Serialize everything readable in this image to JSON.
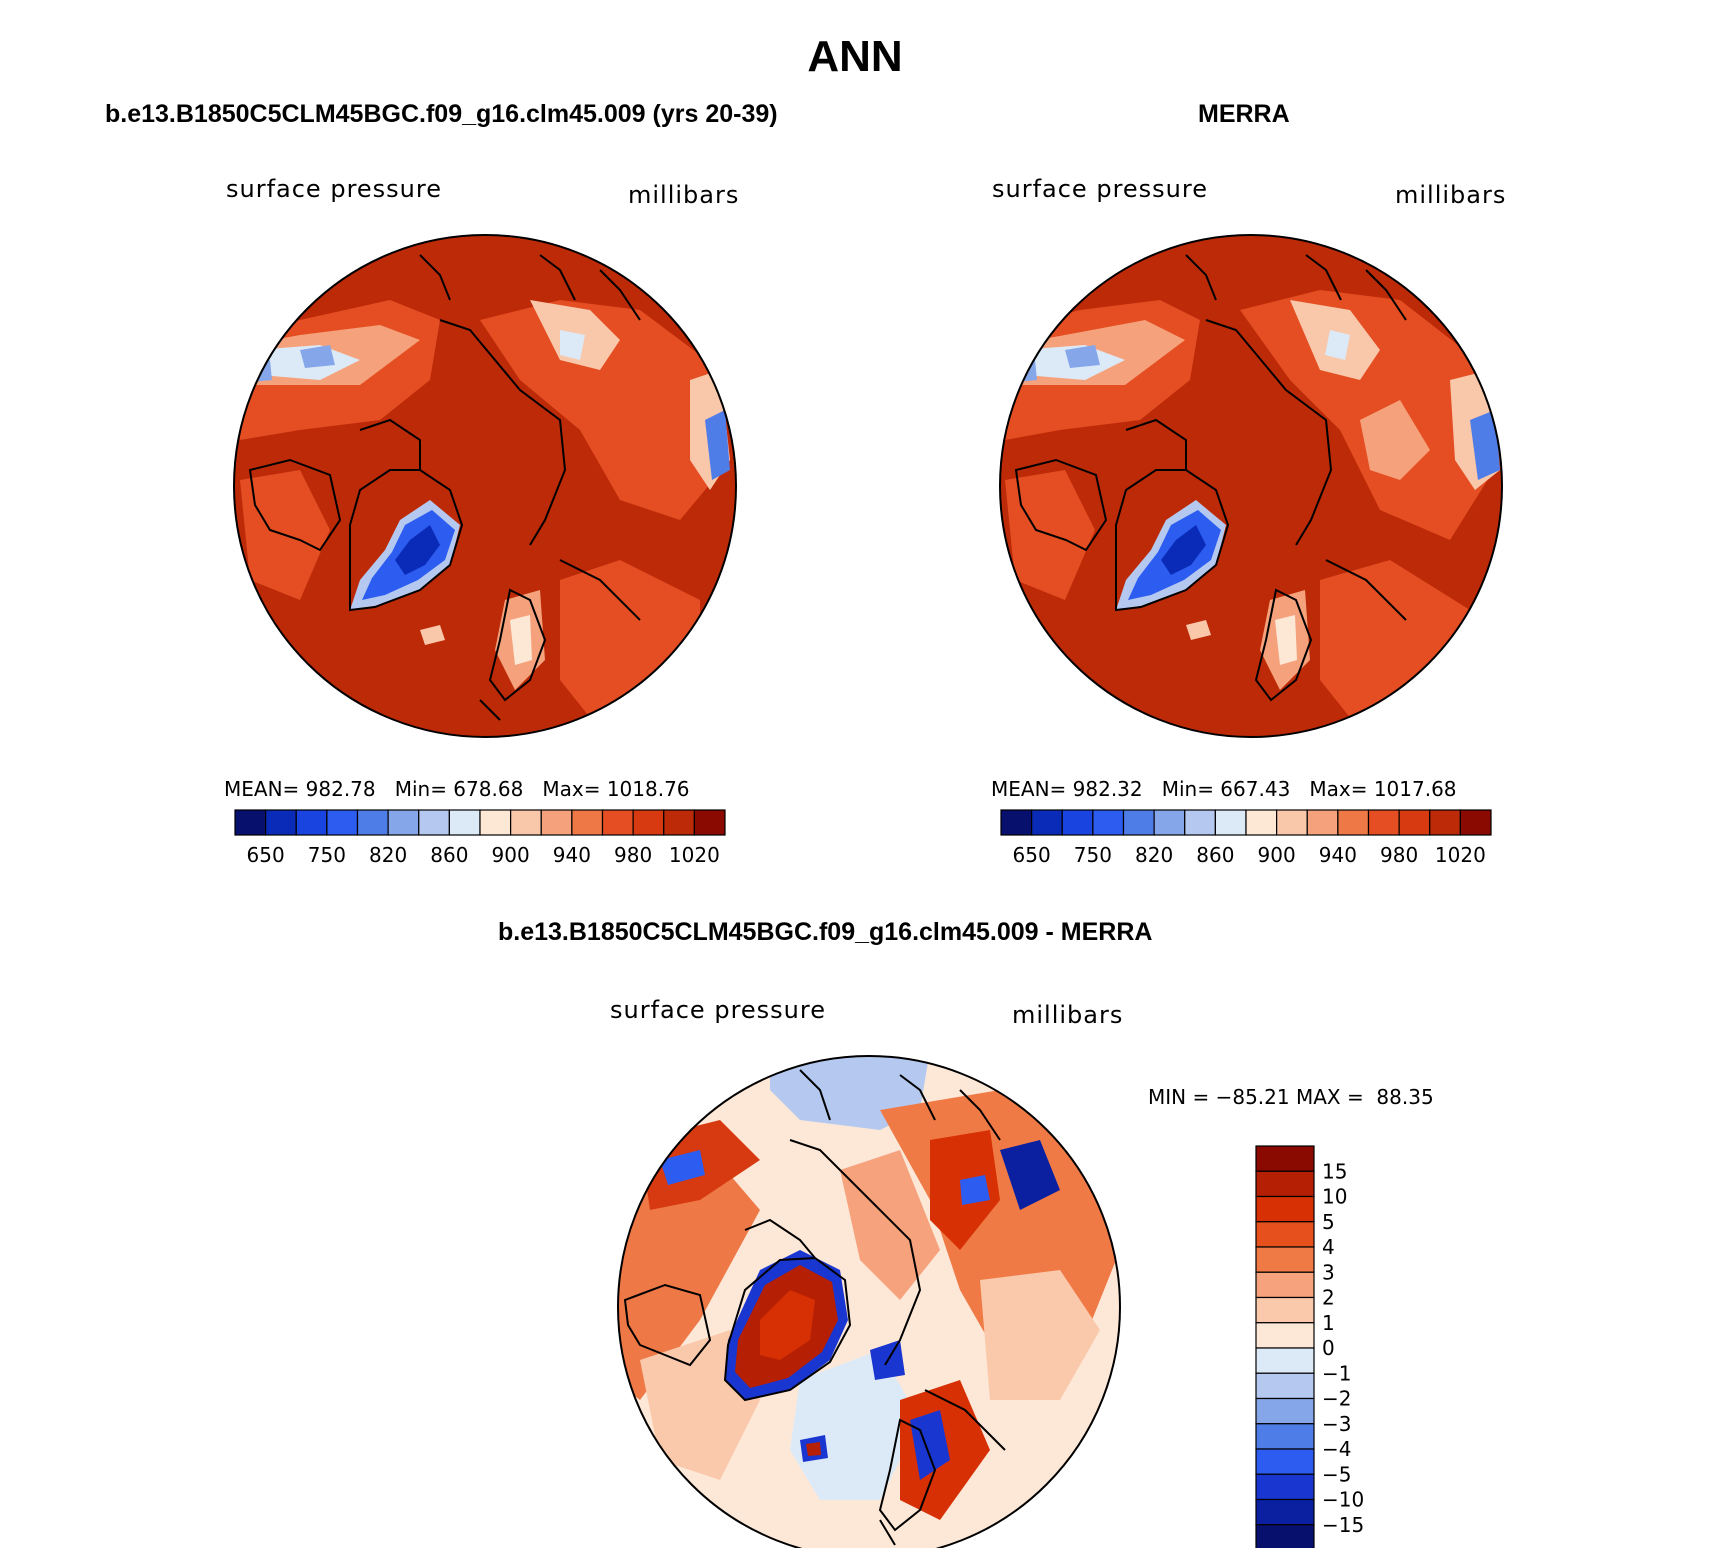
{
  "main_title": "ANN",
  "panels": [
    {
      "title": "b.e13.B1850C5CLM45BGC.f09_g16.clm45.009 (yrs 20-39)",
      "variable": "surface pressure",
      "units": "millibars",
      "stats": "MEAN= 982.78   Min= 678.68   Max= 1018.76"
    },
    {
      "title": "MERRA",
      "variable": "surface pressure",
      "units": "millibars",
      "stats": "MEAN= 982.32   Min= 667.43   Max= 1017.68"
    },
    {
      "title": "b.e13.B1850C5CLM45BGC.f09_g16.clm45.009 - MERRA",
      "variable": "surface pressure",
      "units": "millibars",
      "stats": "MIN = −85.21 MAX =  88.35"
    }
  ],
  "abs_colorbar": {
    "labels": [
      "650",
      "750",
      "820",
      "860",
      "900",
      "940",
      "980",
      "1020"
    ],
    "colors": [
      "#08106e",
      "#0a2bb8",
      "#1a44e0",
      "#2c5cf0",
      "#4f7de8",
      "#86a6ea",
      "#b5c9f0",
      "#dceaf8",
      "#fde8d6",
      "#f9c7aa",
      "#f5a27c",
      "#ee7846",
      "#e44e22",
      "#d73a10",
      "#bd2a08",
      "#8a0a02"
    ]
  },
  "diff_colorbar": {
    "labels": [
      "15",
      "10",
      "5",
      "4",
      "3",
      "2",
      "1",
      "0",
      "−1",
      "−2",
      "−3",
      "−4",
      "−5",
      "−10",
      "−15"
    ],
    "colors": [
      "#8a0a02",
      "#b51f04",
      "#d63004",
      "#e6501c",
      "#f07a46",
      "#f6a27c",
      "#fac8aa",
      "#fde8d8",
      "#dceaf8",
      "#b5c9f0",
      "#86a6ea",
      "#4f7de8",
      "#2c5cf0",
      "#1a36d0",
      "#0a20a0",
      "#08106e"
    ]
  }
}
